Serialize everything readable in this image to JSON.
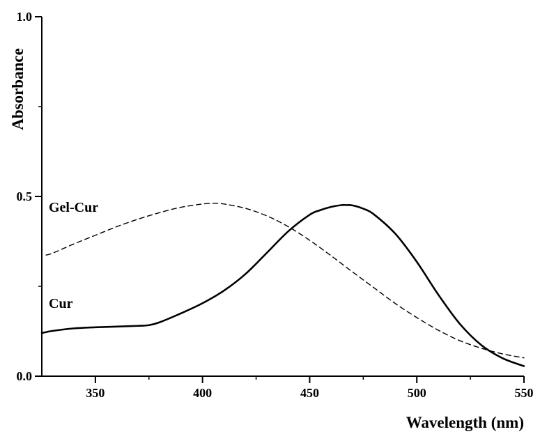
{
  "chart_data": {
    "type": "line",
    "xlabel": "Wavelength (nm)",
    "ylabel": "Absorbance",
    "xlim": [
      325,
      550
    ],
    "ylim": [
      0.0,
      1.0
    ],
    "x_ticks": [
      350,
      400,
      450,
      500,
      550
    ],
    "x_tick_labels": [
      "350",
      "400",
      "450",
      "500",
      "550"
    ],
    "y_ticks": [
      0.0,
      0.5,
      1.0
    ],
    "y_tick_labels": [
      "0.0",
      "0.5",
      "1.0"
    ],
    "grid": false,
    "series": [
      {
        "name": "Gel-Cur",
        "style": "dashed",
        "x": [
          327,
          330,
          340,
          350,
          360,
          370,
          380,
          390,
          400,
          405,
          410,
          420,
          430,
          440,
          450,
          460,
          470,
          480,
          490,
          500,
          510,
          520,
          530,
          540,
          550
        ],
        "y": [
          0.337,
          0.342,
          0.368,
          0.392,
          0.416,
          0.437,
          0.455,
          0.47,
          0.479,
          0.481,
          0.479,
          0.467,
          0.446,
          0.416,
          0.378,
          0.335,
          0.29,
          0.246,
          0.202,
          0.163,
          0.128,
          0.099,
          0.078,
          0.062,
          0.051
        ]
      },
      {
        "name": "Cur",
        "style": "solid",
        "x": [
          325,
          330,
          340,
          350,
          360,
          370,
          375,
          380,
          390,
          400,
          410,
          420,
          430,
          440,
          450,
          455,
          460,
          465,
          467,
          470,
          475,
          480,
          490,
          500,
          510,
          520,
          530,
          540,
          550
        ],
        "y": [
          0.12,
          0.126,
          0.133,
          0.136,
          0.138,
          0.14,
          0.142,
          0.15,
          0.175,
          0.203,
          0.238,
          0.284,
          0.343,
          0.403,
          0.449,
          0.462,
          0.471,
          0.476,
          0.476,
          0.475,
          0.466,
          0.45,
          0.396,
          0.318,
          0.227,
          0.146,
          0.087,
          0.05,
          0.028
        ]
      }
    ],
    "annotations": [
      {
        "text": "Gel-Cur",
        "series": "Gel-Cur"
      },
      {
        "text": "Cur",
        "series": "Cur"
      }
    ]
  }
}
